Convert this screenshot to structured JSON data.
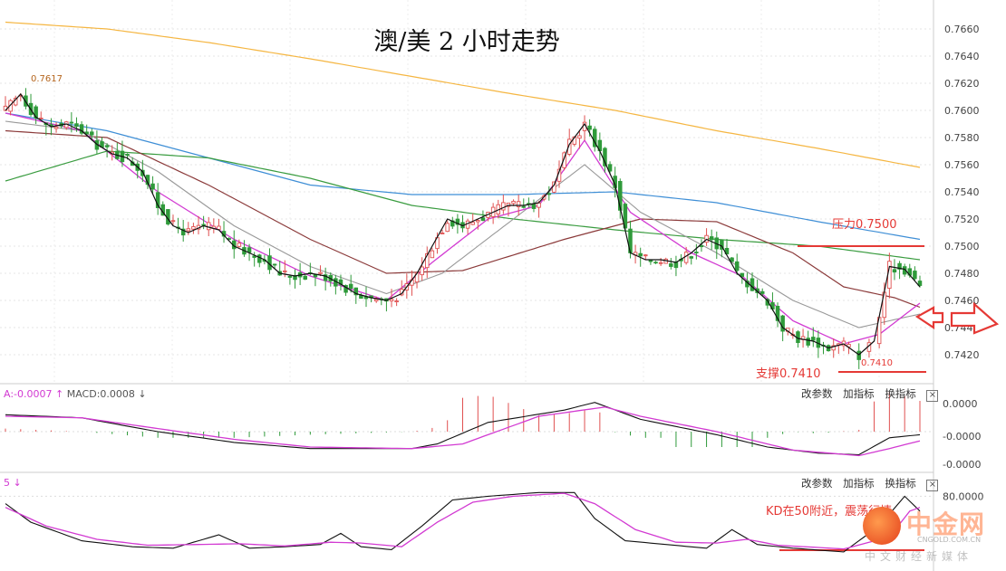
{
  "colors": {
    "up": "#e05050",
    "down": "#2f9a3a",
    "ma200": "#f5b642",
    "ma100": "#3f8fd6",
    "ma60": "#3a9c40",
    "ma30": "#8b3a3a",
    "ma10": "#999999",
    "ma5": "#d23ad2",
    "price": "#111111",
    "annotation": "#e53935"
  },
  "title": "澳/美 2 小时走势",
  "toolbar": {
    "params": "改参数",
    "add": "加指标",
    "swap": "换指标",
    "close": "×"
  },
  "macd_label": {
    "a": "A:-0.0007",
    "macd": "MACD:0.0008",
    "up_arrow": "↑",
    "down_arrow": "↓"
  },
  "kd_label": "5 ↓",
  "annotations": {
    "high": "0.7617",
    "resistance": "压力0.7500",
    "support": "支撑0.7410",
    "low": "0.7410",
    "kd_note": "KD在50附近，震荡行情"
  },
  "logo": {
    "main": "中金网",
    "sub": "CNGOLD.COM.CN",
    "cn": "中文财经新媒体"
  },
  "chart_data": [
    {
      "type": "candlestick",
      "title": "澳/美 2 小时走势",
      "y_ticks": [
        "0.7660",
        "0.7640",
        "0.7620",
        "0.7600",
        "0.7580",
        "0.7560",
        "0.7540",
        "0.7520",
        "0.7500",
        "0.7480",
        "0.7460",
        "0.7440",
        "0.7420"
      ],
      "ylim": [
        0.74,
        0.767
      ],
      "anchor_points": {
        "close": [
          [
            0,
            0.76
          ],
          [
            3,
            0.7612
          ],
          [
            6,
            0.7595
          ],
          [
            9,
            0.7588
          ],
          [
            12,
            0.759
          ],
          [
            15,
            0.7585
          ],
          [
            18,
            0.7575
          ],
          [
            21,
            0.7568
          ],
          [
            24,
            0.7565
          ],
          [
            27,
            0.7555
          ],
          [
            30,
            0.753
          ],
          [
            33,
            0.7515
          ],
          [
            36,
            0.751
          ],
          [
            39,
            0.7515
          ],
          [
            42,
            0.7512
          ],
          [
            45,
            0.75
          ],
          [
            48,
            0.7495
          ],
          [
            51,
            0.749
          ],
          [
            54,
            0.748
          ],
          [
            57,
            0.7478
          ],
          [
            60,
            0.748
          ],
          [
            63,
            0.7478
          ],
          [
            66,
            0.7472
          ],
          [
            69,
            0.7465
          ],
          [
            72,
            0.7462
          ],
          [
            75,
            0.746
          ],
          [
            78,
            0.7465
          ],
          [
            81,
            0.748
          ],
          [
            84,
            0.75
          ],
          [
            87,
            0.752
          ],
          [
            90,
            0.7515
          ],
          [
            93,
            0.752
          ],
          [
            96,
            0.7525
          ],
          [
            99,
            0.753
          ],
          [
            102,
            0.753
          ],
          [
            105,
            0.7532
          ],
          [
            108,
            0.7545
          ],
          [
            111,
            0.7575
          ],
          [
            114,
            0.759
          ],
          [
            117,
            0.757
          ],
          [
            120,
            0.7545
          ],
          [
            123,
            0.7495
          ],
          [
            126,
            0.749
          ],
          [
            129,
            0.749
          ],
          [
            132,
            0.7488
          ],
          [
            135,
            0.7495
          ],
          [
            138,
            0.7505
          ],
          [
            141,
            0.75
          ],
          [
            144,
            0.748
          ],
          [
            147,
            0.747
          ],
          [
            150,
            0.746
          ],
          [
            153,
            0.744
          ],
          [
            156,
            0.7432
          ],
          [
            159,
            0.743
          ],
          [
            162,
            0.7425
          ],
          [
            165,
            0.7428
          ],
          [
            168,
            0.742
          ],
          [
            171,
            0.743
          ],
          [
            174,
            0.7485
          ],
          [
            177,
            0.7483
          ],
          [
            180,
            0.747
          ]
        ],
        "ma5": [
          [
            0,
            0.7598
          ],
          [
            15,
            0.7585
          ],
          [
            30,
            0.754
          ],
          [
            45,
            0.7505
          ],
          [
            60,
            0.7478
          ],
          [
            75,
            0.746
          ],
          [
            84,
            0.7488
          ],
          [
            95,
            0.752
          ],
          [
            105,
            0.753
          ],
          [
            114,
            0.7578
          ],
          [
            123,
            0.7525
          ],
          [
            135,
            0.7495
          ],
          [
            145,
            0.7478
          ],
          [
            155,
            0.7445
          ],
          [
            165,
            0.7428
          ],
          [
            172,
            0.7435
          ],
          [
            180,
            0.7458
          ]
        ],
        "ma10": [
          [
            0,
            0.7592
          ],
          [
            15,
            0.7585
          ],
          [
            30,
            0.7555
          ],
          [
            45,
            0.7515
          ],
          [
            60,
            0.7485
          ],
          [
            75,
            0.7465
          ],
          [
            86,
            0.748
          ],
          [
            100,
            0.752
          ],
          [
            114,
            0.756
          ],
          [
            125,
            0.7525
          ],
          [
            140,
            0.7495
          ],
          [
            155,
            0.746
          ],
          [
            168,
            0.744
          ],
          [
            180,
            0.745
          ]
        ],
        "ma30": [
          [
            0,
            0.7585
          ],
          [
            20,
            0.758
          ],
          [
            40,
            0.7545
          ],
          [
            60,
            0.7505
          ],
          [
            75,
            0.748
          ],
          [
            90,
            0.7482
          ],
          [
            110,
            0.7505
          ],
          [
            125,
            0.752
          ],
          [
            140,
            0.7518
          ],
          [
            155,
            0.7495
          ],
          [
            165,
            0.747
          ],
          [
            175,
            0.7462
          ],
          [
            180,
            0.7455
          ]
        ],
        "ma60": [
          [
            0,
            0.7548
          ],
          [
            20,
            0.757
          ],
          [
            40,
            0.7565
          ],
          [
            60,
            0.755
          ],
          [
            80,
            0.753
          ],
          [
            100,
            0.752
          ],
          [
            120,
            0.7512
          ],
          [
            140,
            0.7505
          ],
          [
            160,
            0.75
          ],
          [
            180,
            0.749
          ]
        ],
        "ma100": [
          [
            0,
            0.7598
          ],
          [
            20,
            0.7585
          ],
          [
            40,
            0.7565
          ],
          [
            60,
            0.7545
          ],
          [
            80,
            0.7538
          ],
          [
            100,
            0.7538
          ],
          [
            120,
            0.754
          ],
          [
            140,
            0.7532
          ],
          [
            160,
            0.7518
          ],
          [
            180,
            0.7505
          ]
        ],
        "ma200": [
          [
            0,
            0.7665
          ],
          [
            20,
            0.766
          ],
          [
            40,
            0.765
          ],
          [
            60,
            0.7638
          ],
          [
            80,
            0.7625
          ],
          [
            100,
            0.7612
          ],
          [
            120,
            0.76
          ],
          [
            140,
            0.7585
          ],
          [
            160,
            0.7572
          ],
          [
            180,
            0.7558
          ]
        ]
      }
    },
    {
      "type": "macd",
      "y_ticks": [
        "0.0000",
        "-0.0000",
        "-0.0000"
      ],
      "anchor_points": {
        "dif": [
          [
            0,
            0.55
          ],
          [
            15,
            0.45
          ],
          [
            30,
            0.0
          ],
          [
            45,
            -0.35
          ],
          [
            60,
            -0.55
          ],
          [
            80,
            -0.55
          ],
          [
            85,
            -0.4
          ],
          [
            95,
            0.3
          ],
          [
            110,
            0.7
          ],
          [
            116,
            0.95
          ],
          [
            125,
            0.4
          ],
          [
            140,
            -0.1
          ],
          [
            150,
            -0.5
          ],
          [
            160,
            -0.7
          ],
          [
            168,
            -0.75
          ],
          [
            174,
            -0.2
          ],
          [
            180,
            -0.1
          ]
        ],
        "dea": [
          [
            0,
            0.5
          ],
          [
            15,
            0.45
          ],
          [
            30,
            0.1
          ],
          [
            45,
            -0.25
          ],
          [
            60,
            -0.5
          ],
          [
            80,
            -0.55
          ],
          [
            90,
            -0.4
          ],
          [
            105,
            0.5
          ],
          [
            118,
            0.8
          ],
          [
            125,
            0.5
          ],
          [
            140,
            0.0
          ],
          [
            155,
            -0.6
          ],
          [
            168,
            -0.78
          ],
          [
            174,
            -0.55
          ],
          [
            180,
            -0.3
          ]
        ]
      }
    },
    {
      "type": "kd",
      "y_ticks": [
        "80.0000"
      ],
      "anchor_points": {
        "k": [
          [
            0,
            70
          ],
          [
            5,
            45
          ],
          [
            15,
            20
          ],
          [
            25,
            12
          ],
          [
            33,
            10
          ],
          [
            42,
            28
          ],
          [
            48,
            10
          ],
          [
            55,
            12
          ],
          [
            62,
            15
          ],
          [
            66,
            30
          ],
          [
            70,
            12
          ],
          [
            76,
            8
          ],
          [
            82,
            40
          ],
          [
            88,
            75
          ],
          [
            95,
            80
          ],
          [
            105,
            85
          ],
          [
            112,
            85
          ],
          [
            116,
            50
          ],
          [
            122,
            20
          ],
          [
            130,
            15
          ],
          [
            138,
            10
          ],
          [
            143,
            35
          ],
          [
            148,
            15
          ],
          [
            155,
            10
          ],
          [
            165,
            5
          ],
          [
            172,
            40
          ],
          [
            177,
            80
          ],
          [
            180,
            60
          ]
        ],
        "d": [
          [
            0,
            65
          ],
          [
            8,
            40
          ],
          [
            18,
            22
          ],
          [
            28,
            14
          ],
          [
            38,
            15
          ],
          [
            46,
            16
          ],
          [
            55,
            13
          ],
          [
            64,
            18
          ],
          [
            70,
            17
          ],
          [
            78,
            12
          ],
          [
            85,
            45
          ],
          [
            92,
            72
          ],
          [
            100,
            80
          ],
          [
            110,
            84
          ],
          [
            116,
            70
          ],
          [
            124,
            35
          ],
          [
            132,
            18
          ],
          [
            140,
            17
          ],
          [
            146,
            22
          ],
          [
            152,
            14
          ],
          [
            165,
            9
          ],
          [
            174,
            25
          ],
          [
            178,
            60
          ],
          [
            180,
            65
          ]
        ]
      }
    }
  ]
}
